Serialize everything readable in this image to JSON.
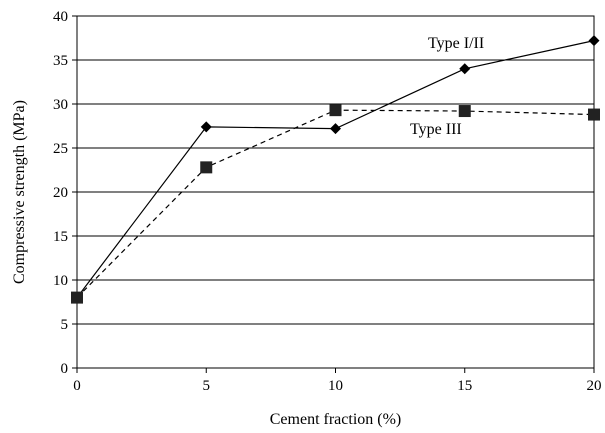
{
  "chart_data": {
    "type": "line",
    "title": "",
    "xlabel": "Cement fraction (%)",
    "ylabel": "Compressive strength (MPa)",
    "x": [
      0,
      5,
      10,
      15,
      20
    ],
    "xlim": [
      0,
      20
    ],
    "ylim": [
      0,
      40
    ],
    "xticks": [
      0,
      5,
      10,
      15,
      20
    ],
    "yticks": [
      0,
      5,
      10,
      15,
      20,
      25,
      30,
      35,
      40
    ],
    "grid": "horizontal",
    "legend": "none (inline labels)",
    "series": [
      {
        "name": "Type I/II",
        "values": [
          8.0,
          27.4,
          27.2,
          34.0,
          37.2
        ],
        "marker": "diamond",
        "line": "solid",
        "color": "#000000"
      },
      {
        "name": "Type III",
        "values": [
          8.0,
          22.8,
          29.3,
          29.2,
          28.8
        ],
        "marker": "square",
        "line": "dashed",
        "color": "#000000"
      }
    ]
  }
}
